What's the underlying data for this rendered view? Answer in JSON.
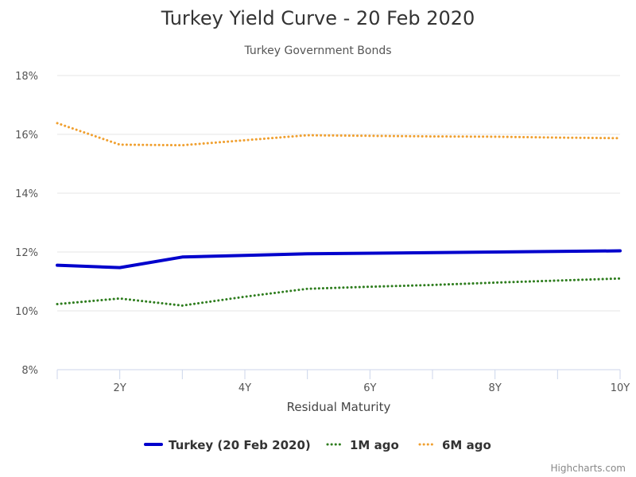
{
  "chart_data": {
    "type": "line",
    "title": "Turkey Yield Curve - 20 Feb 2020",
    "subtitle": "Turkey Government Bonds",
    "xlabel": "Residual Maturity",
    "ylabel": "",
    "x": [
      1,
      2,
      3,
      4,
      5,
      6,
      7,
      8,
      9,
      10
    ],
    "xlim": [
      1,
      10
    ],
    "x_ticks": [
      {
        "value": 2,
        "label": "2Y"
      },
      {
        "value": 4,
        "label": "4Y"
      },
      {
        "value": 6,
        "label": "6Y"
      },
      {
        "value": 8,
        "label": "8Y"
      },
      {
        "value": 10,
        "label": "10Y"
      }
    ],
    "ylim": [
      8,
      18
    ],
    "y_ticks": [
      {
        "value": 8,
        "label": "8%"
      },
      {
        "value": 10,
        "label": "10%"
      },
      {
        "value": 12,
        "label": "12%"
      },
      {
        "value": 14,
        "label": "14%"
      },
      {
        "value": 16,
        "label": "16%"
      },
      {
        "value": 18,
        "label": "18%"
      }
    ],
    "grid": true,
    "legend_position": "bottom-center",
    "series": [
      {
        "name": "Turkey (20 Feb 2020)",
        "color": "#0000cc",
        "style": "solid",
        "points": [
          [
            1,
            11.55
          ],
          [
            2,
            11.47
          ],
          [
            3,
            11.83
          ],
          [
            5,
            11.94
          ],
          [
            10,
            12.04
          ]
        ]
      },
      {
        "name": "1M ago",
        "color": "#2e7d1e",
        "style": "dotted",
        "points": [
          [
            1,
            10.23
          ],
          [
            2,
            10.42
          ],
          [
            3,
            10.18
          ],
          [
            4,
            10.48
          ],
          [
            5,
            10.75
          ],
          [
            6,
            10.82
          ],
          [
            7,
            10.88
          ],
          [
            8,
            10.96
          ],
          [
            9,
            11.03
          ],
          [
            10,
            11.1
          ]
        ]
      },
      {
        "name": "6M ago",
        "color": "#f0a030",
        "style": "dotted",
        "points": [
          [
            1,
            16.38
          ],
          [
            2,
            15.65
          ],
          [
            3,
            15.63
          ],
          [
            4,
            15.8
          ],
          [
            5,
            15.97
          ],
          [
            6,
            15.95
          ],
          [
            7,
            15.93
          ],
          [
            8,
            15.92
          ],
          [
            9,
            15.89
          ],
          [
            10,
            15.87
          ]
        ]
      }
    ]
  },
  "credits": "Highcharts.com"
}
